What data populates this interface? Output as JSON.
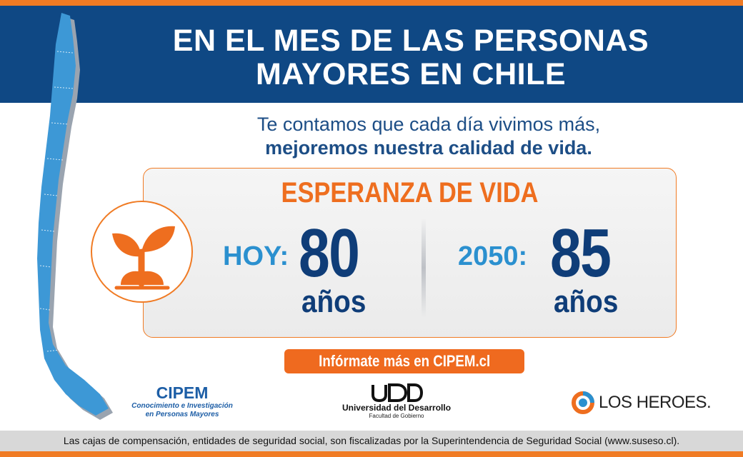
{
  "header": {
    "headline_line1": "EN EL MES DE LAS PERSONAS",
    "headline_line2": "MAYORES EN CHILE"
  },
  "tagline": {
    "line1": "Te contamos que cada día vivimos más,",
    "line2": "mejoremos nuestra calidad de vida."
  },
  "life_expectancy": {
    "title": "ESPERANZA DE VIDA",
    "icon": "sprout-icon",
    "today": {
      "label": "HOY:",
      "value": "80",
      "unit": "años"
    },
    "future": {
      "label": "2050:",
      "value": "85",
      "unit": "años"
    }
  },
  "cta": {
    "label": "Infórmate más en CIPEM.cl"
  },
  "logos": {
    "cipem": {
      "name": "CIPEM",
      "line1": "Conocimiento e Investigación",
      "line2": "en Personas Mayores"
    },
    "udd": {
      "mark": "UDD",
      "name": "Universidad del Desarrollo",
      "sub": "Facultad de Gobierno"
    },
    "los_heroes": {
      "name": "LOS HEROES."
    }
  },
  "footer": {
    "disclaimer": "Las cajas de compensación, entidades de seguridad social, son fiscalizadas por la Superintendencia de Seguridad Social (www.suseso.cl)."
  },
  "colors": {
    "navy": "#0f4884",
    "orange": "#f07b24",
    "light_blue": "#2b90cf",
    "dark_blue": "#0f3d78",
    "map_blue": "#3d98d6"
  }
}
